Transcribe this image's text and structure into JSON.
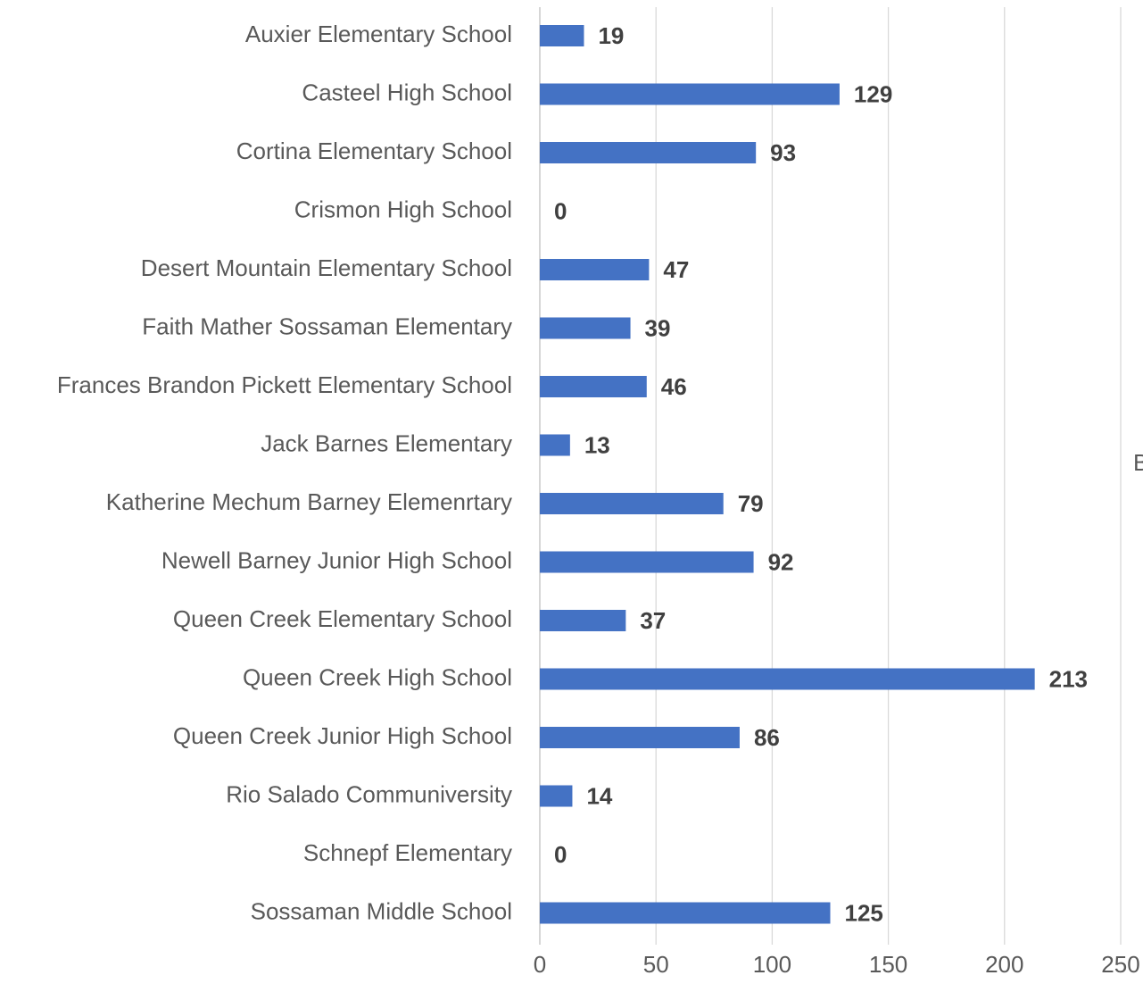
{
  "chart_data": {
    "type": "bar",
    "orientation": "horizontal",
    "categories": [
      "Auxier Elementary School",
      "Casteel High School",
      "Cortina Elementary School",
      "Crismon High School",
      "Desert Mountain Elementary School",
      "Faith Mather Sossaman Elementary",
      "Frances Brandon Pickett Elementary School",
      "Jack Barnes Elementary",
      "Katherine Mechum Barney Elemenrtary",
      "Newell Barney Junior High School",
      "Queen Creek Elementary School",
      "Queen Creek High School",
      "Queen Creek Junior High School",
      "Rio Salado Communiversity",
      "Schnepf Elementary",
      "Sossaman Middle School"
    ],
    "values": [
      19,
      129,
      93,
      0,
      47,
      39,
      46,
      13,
      79,
      92,
      37,
      213,
      86,
      14,
      0,
      125
    ],
    "xlim": [
      0,
      250
    ],
    "xticks": [
      "0",
      "50",
      "100",
      "150",
      "200",
      "250"
    ],
    "grid": true,
    "data_labels": true,
    "bar_color": "#4472C4",
    "grid_color": "#D9D9D9",
    "title": "",
    "xlabel": "",
    "ylabel": "",
    "edge_text": "B"
  }
}
